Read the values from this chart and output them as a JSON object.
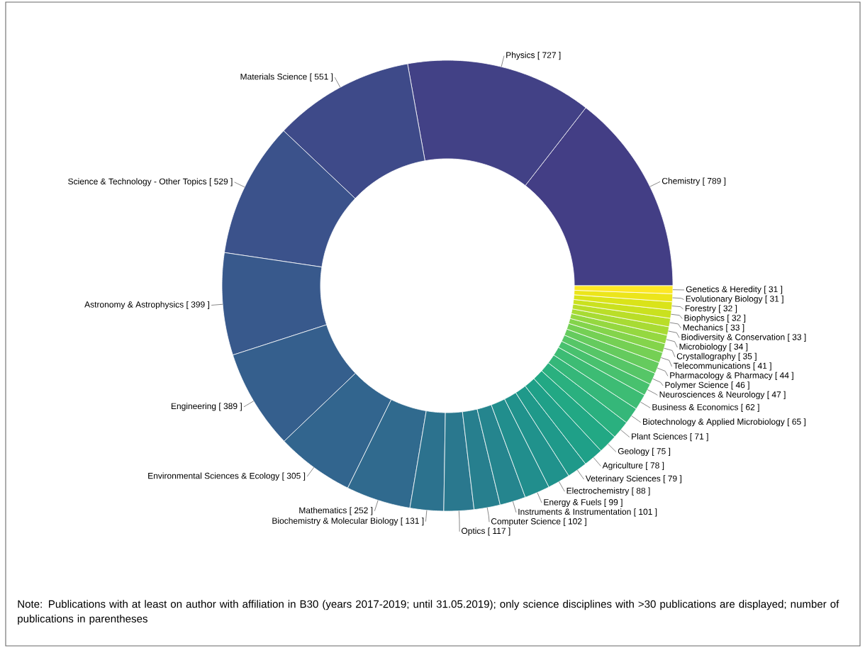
{
  "chart_data": {
    "type": "donut",
    "categories": [
      "Chemistry",
      "Physics",
      "Materials Science",
      "Science & Technology - Other Topics",
      "Astronomy & Astrophysics",
      "Engineering",
      "Environmental Sciences & Ecology",
      "Mathematics",
      "Biochemistry & Molecular Biology",
      "Optics",
      "Computer Science",
      "Instruments & Instrumentation",
      "Energy & Fuels",
      "Electrochemistry",
      "Veterinary Sciences",
      "Agriculture",
      "Geology",
      "Plant Sciences",
      "Biotechnology & Applied Microbiology",
      "Business & Economics",
      "Neurosciences & Neurology",
      "Polymer Science",
      "Pharmacology & Pharmacy",
      "Telecommunications",
      "Crystallography",
      "Microbiology",
      "Biodiversity & Conservation",
      "Mechanics",
      "Biophysics",
      "Forestry",
      "Evolutionary Biology",
      "Genetics & Heredity"
    ],
    "values": [
      789,
      727,
      551,
      529,
      399,
      389,
      305,
      252,
      131,
      117,
      102,
      101,
      99,
      88,
      79,
      78,
      75,
      71,
      65,
      62,
      47,
      46,
      44,
      41,
      35,
      34,
      33,
      33,
      32,
      32,
      31,
      31
    ],
    "value_labels": [
      "[ 789 ]",
      "[ 727 ]",
      "[ 551 ]",
      "[ 529 ]",
      "[ 399 ]",
      "[ 389 ]",
      "[ 305 ]",
      "[ 252 ]",
      "[ 131 ]",
      "[ 117 ]",
      "[ 102 ]",
      "[ 101 ]",
      "[ 99 ]",
      "[ 88 ]",
      "[ 79 ]",
      "[ 78 ]",
      "[ 75 ]",
      "[ 71 ]",
      "[ 65 ]",
      "[ 62 ]",
      "[ 47 ]",
      "[ 46 ]",
      "[ 44 ]",
      "[ 41 ]",
      "[ 35 ]",
      "[ 34 ]",
      "[ 33 ]",
      "[ 33 ]",
      "[ 32 ]",
      "[ 32 ]",
      "[ 31 ]",
      "[ 31 ]"
    ],
    "colors": [
      "#433e85",
      "#424186",
      "#3e4a89",
      "#3b528b",
      "#38598c",
      "#355f8d",
      "#32658e",
      "#306a8e",
      "#2c728e",
      "#2a788e",
      "#277f8e",
      "#25858e",
      "#218e8d",
      "#20928c",
      "#1f998a",
      "#1fa088",
      "#22a884",
      "#2ab07f",
      "#35b779",
      "#3dbc74",
      "#48c16e",
      "#56c667",
      "#65cb5e",
      "#75d054",
      "#84d44b",
      "#95d840",
      "#a8db34",
      "#bade28",
      "#cae11f",
      "#dae319",
      "#ece51b",
      "#fde725"
    ],
    "annotations": [
      "Note: Publications with at least on author with affiliation in B30 (years 2017-2019; until 31.05.2019); only science disciplines with >30 publications are displayed; number of publications in parentheses"
    ]
  }
}
